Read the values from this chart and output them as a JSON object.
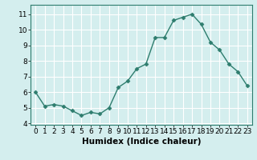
{
  "x": [
    0,
    1,
    2,
    3,
    4,
    5,
    6,
    7,
    8,
    9,
    10,
    11,
    12,
    13,
    14,
    15,
    16,
    17,
    18,
    19,
    20,
    21,
    22,
    23
  ],
  "y": [
    6.0,
    5.1,
    5.2,
    5.1,
    4.8,
    4.5,
    4.7,
    4.6,
    5.0,
    6.3,
    6.7,
    7.5,
    7.8,
    9.5,
    9.5,
    10.6,
    10.8,
    11.0,
    10.35,
    9.2,
    8.7,
    7.8,
    7.3,
    6.4
  ],
  "line_color": "#2e7d6e",
  "marker": "D",
  "marker_size": 2.5,
  "background_color": "#d4eeee",
  "grid_color": "#ffffff",
  "xlabel": "Humidex (Indice chaleur)",
  "xlim": [
    -0.5,
    23.5
  ],
  "ylim": [
    3.9,
    11.6
  ],
  "yticks": [
    4,
    5,
    6,
    7,
    8,
    9,
    10,
    11
  ],
  "xticks": [
    0,
    1,
    2,
    3,
    4,
    5,
    6,
    7,
    8,
    9,
    10,
    11,
    12,
    13,
    14,
    15,
    16,
    17,
    18,
    19,
    20,
    21,
    22,
    23
  ],
  "tick_fontsize": 6.5,
  "label_fontsize": 7.5
}
